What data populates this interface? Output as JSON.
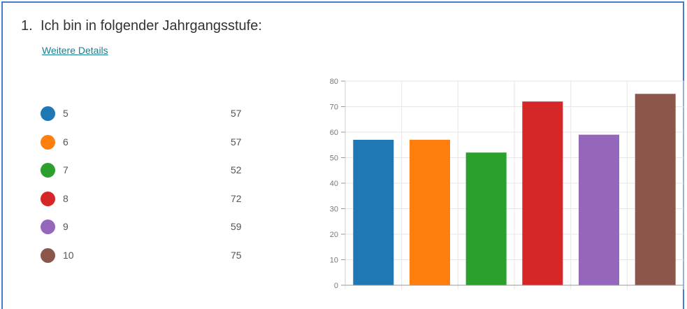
{
  "question": {
    "number": "1.",
    "title": "Ich bin in folgender Jahrgangsstufe:",
    "details_link": "Weitere Details"
  },
  "chart_data": {
    "type": "bar",
    "categories": [
      "5",
      "6",
      "7",
      "8",
      "9",
      "10"
    ],
    "values": [
      57,
      57,
      52,
      72,
      59,
      75
    ],
    "colors": [
      "#1f77b4",
      "#ff7f0e",
      "#2ca02c",
      "#d62728",
      "#9467bd",
      "#8c564b"
    ],
    "ylim": [
      0,
      80
    ],
    "yticks": [
      "0",
      "10",
      "20",
      "30",
      "40",
      "50",
      "60",
      "70",
      "80"
    ],
    "grid": true,
    "legend_placement": "left"
  }
}
